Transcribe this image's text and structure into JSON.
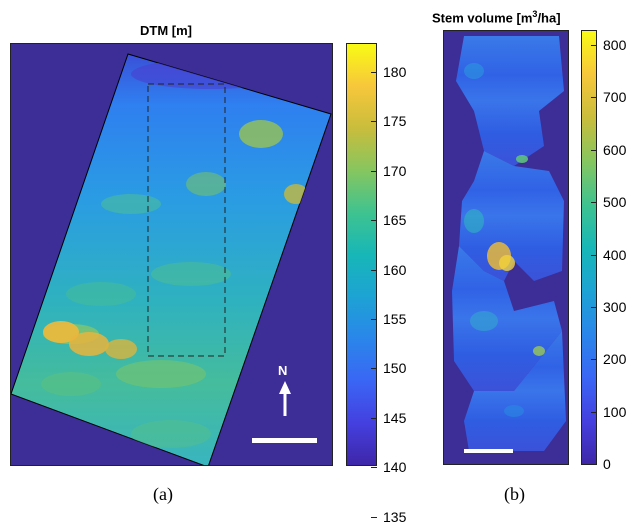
{
  "panel_a": {
    "title": "DTM [m]",
    "north_label": "N",
    "colorbar_ticks": [
      "180",
      "175",
      "170",
      "165",
      "160",
      "155",
      "150",
      "145",
      "140",
      "135"
    ],
    "caption": "(a)"
  },
  "panel_b": {
    "title_main": "Stem volume [m",
    "title_sup": "3",
    "title_end": "/ha]",
    "colorbar_ticks": [
      "800",
      "700",
      "600",
      "500",
      "400",
      "300",
      "200",
      "100",
      "0"
    ],
    "caption": "(b)"
  },
  "colors": {
    "background_field": "#3c2d97",
    "scale_bar": "#ffffff"
  }
}
